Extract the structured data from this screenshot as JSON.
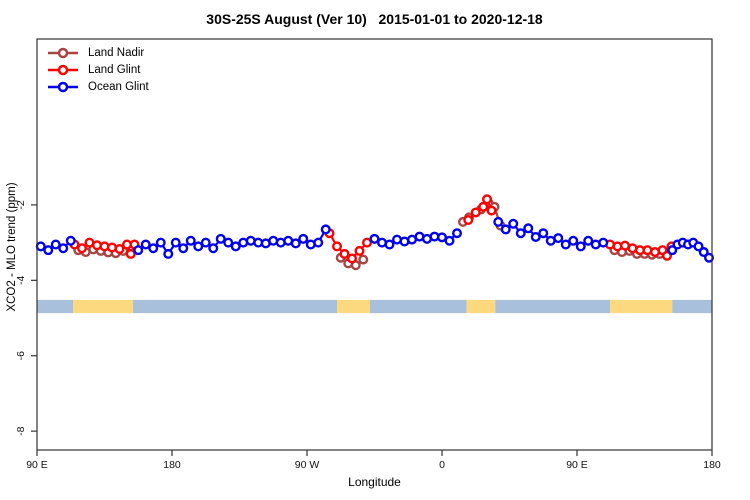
{
  "title": "30S-25S August (Ver 10)   2015-01-01 to 2020-12-18",
  "legend": {
    "items": [
      {
        "label": "Land Nadir",
        "color": "#A84444"
      },
      {
        "label": "Land Glint",
        "color": "#FF0000"
      },
      {
        "label": "Ocean Glint",
        "color": "#0000EE"
      }
    ]
  },
  "chart_data": {
    "type": "line",
    "title": "30S-25S August (Ver 10)   2015-01-01 to 2020-12-18",
    "xlabel": "Longitude",
    "ylabel": "XCO2 - MLO trend (ppm)",
    "xlim": [
      90,
      540
    ],
    "ylim": [
      -8.5,
      2.4
    ],
    "grid": false,
    "legend_position": "top-left",
    "axis_note": "x axis is longitude wrapping 450 degrees: 90E to 180 to 90W to 0 to 90E to 180 (axis coordinate 90..540)",
    "x_ticks": [
      {
        "pos": 90,
        "label": "90 E"
      },
      {
        "pos": 180,
        "label": "180"
      },
      {
        "pos": 270,
        "label": "90 W"
      },
      {
        "pos": 360,
        "label": "0"
      },
      {
        "pos": 450,
        "label": "90 E"
      },
      {
        "pos": 540,
        "label": "180"
      }
    ],
    "y_ticks": [
      {
        "pos": -2,
        "label": "-2"
      },
      {
        "pos": -4,
        "label": "-4"
      },
      {
        "pos": -6,
        "label": "-6"
      },
      {
        "pos": -8,
        "label": "-8"
      }
    ],
    "marker": {
      "shape": "open-circle",
      "radius": 3.8,
      "stroke_width": 2.4,
      "fill": "#ffffff"
    },
    "series": [
      {
        "name": "Land Nadir",
        "color": "#A84444",
        "runs": [
          {
            "x": [
              117.5,
              122.5,
              127.5,
              132.5,
              137.5,
              142.5,
              147.5
            ],
            "y": [
              -3.2,
              -3.25,
              -3.18,
              -3.22,
              -3.26,
              -3.28,
              -3.22
            ]
          },
          {
            "x": [
              292.5,
              297.5,
              302.5,
              307.5
            ],
            "y": [
              -3.4,
              -3.55,
              -3.6,
              -3.45
            ]
          },
          {
            "x": [
              374,
              378,
              386,
              391,
              395,
              399
            ],
            "y": [
              -2.45,
              -2.33,
              -2.12,
              -1.95,
              -2.05,
              -2.55
            ]
          },
          {
            "x": [
              475,
              480,
              485,
              490,
              495,
              500,
              505,
              510
            ],
            "y": [
              -3.2,
              -3.25,
              -3.22,
              -3.3,
              -3.3,
              -3.32,
              -3.3,
              -3.28
            ]
          }
        ]
      },
      {
        "name": "Land Glint",
        "color": "#FF0000",
        "runs": [
          {
            "x": [
              115,
              120,
              125,
              130,
              135,
              140,
              145,
              150,
              152.5,
              155
            ],
            "y": [
              -3.05,
              -3.15,
              -3.0,
              -3.07,
              -3.1,
              -3.13,
              -3.17,
              -3.05,
              -3.3,
              -3.05
            ]
          },
          {
            "x": [
              285,
              290,
              295,
              300,
              305,
              310
            ],
            "y": [
              -2.75,
              -3.1,
              -3.3,
              -3.42,
              -3.22,
              -3.0
            ]
          },
          {
            "x": [
              377.5,
              382.5,
              387.5,
              390,
              393
            ],
            "y": [
              -2.4,
              -2.2,
              -2.05,
              -1.85,
              -2.15
            ]
          },
          {
            "x": [
              472,
              477,
              482,
              487,
              492,
              497,
              502,
              507,
              510,
              513
            ],
            "y": [
              -3.05,
              -3.1,
              -3.08,
              -3.15,
              -3.2,
              -3.2,
              -3.25,
              -3.2,
              -3.35,
              -3.1
            ]
          }
        ]
      },
      {
        "name": "Ocean Glint",
        "color": "#0000EE",
        "runs": [
          {
            "x": [
              92.5,
              97.5,
              102.5,
              107.5,
              112.5
            ],
            "y": [
              -3.1,
              -3.2,
              -3.05,
              -3.15,
              -2.95
            ]
          },
          {
            "x": [
              157.5,
              162.5,
              167.5,
              172.5,
              177.5,
              182.5,
              187.5,
              192.5,
              197.5,
              202.5,
              207.5,
              212.5,
              217.5,
              222.5,
              227.5,
              232.5,
              237.5,
              242.5,
              247.5,
              252.5,
              257.5,
              262.5,
              267.5,
              272.5,
              277.5,
              282.5
            ],
            "y": [
              -3.2,
              -3.05,
              -3.15,
              -3.0,
              -3.3,
              -3.0,
              -3.15,
              -2.95,
              -3.1,
              -3.0,
              -3.15,
              -2.9,
              -3.0,
              -3.1,
              -3.0,
              -2.95,
              -3.0,
              -3.02,
              -2.95,
              -3.0,
              -2.95,
              -3.02,
              -2.9,
              -3.05,
              -3.0,
              -2.65
            ]
          },
          {
            "x": [
              315,
              320,
              325,
              330,
              335,
              340,
              345,
              350,
              355,
              360,
              365,
              370
            ],
            "y": [
              -2.9,
              -3.0,
              -3.05,
              -2.92,
              -2.97,
              -2.92,
              -2.84,
              -2.9,
              -2.84,
              -2.86,
              -2.95,
              -2.75
            ]
          },
          {
            "x": [
              397.5,
              402.5,
              407.5,
              412.5,
              417.5,
              422.5,
              427.5,
              432.5,
              437.5,
              442.5,
              447.5,
              452.5,
              457.5,
              462.5,
              467.5
            ],
            "y": [
              -2.45,
              -2.65,
              -2.5,
              -2.75,
              -2.62,
              -2.85,
              -2.75,
              -2.95,
              -2.88,
              -3.05,
              -2.95,
              -3.1,
              -2.95,
              -3.05,
              -3.0
            ]
          },
          {
            "x": [
              513.5,
              517,
              520.5,
              524,
              527.5,
              531,
              534.5,
              538
            ],
            "y": [
              -3.2,
              -3.05,
              -3.0,
              -3.05,
              -3.0,
              -3.1,
              -3.25,
              -3.4
            ]
          }
        ]
      }
    ],
    "land_ocean_band": {
      "y_top": -4.52,
      "y_bottom": -4.87,
      "ocean_color": "#A9C0DD",
      "land_color": "#FCD87E",
      "segments": [
        {
          "from": 90,
          "to": 114,
          "type": "ocean"
        },
        {
          "from": 114,
          "to": 154,
          "type": "land"
        },
        {
          "from": 154,
          "to": 290,
          "type": "ocean"
        },
        {
          "from": 290,
          "to": 312,
          "type": "land"
        },
        {
          "from": 312,
          "to": 376.5,
          "type": "ocean"
        },
        {
          "from": 376.5,
          "to": 395.5,
          "type": "land"
        },
        {
          "from": 395.5,
          "to": 472,
          "type": "ocean"
        },
        {
          "from": 472,
          "to": 513.5,
          "type": "land"
        },
        {
          "from": 513.5,
          "to": 540,
          "type": "ocean"
        }
      ]
    }
  }
}
